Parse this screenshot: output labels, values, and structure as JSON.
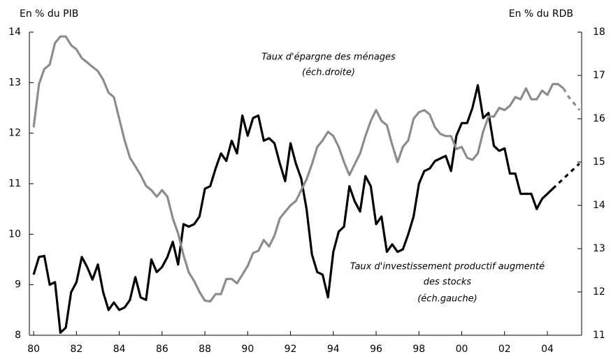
{
  "chart_data": {
    "type": "line",
    "y_label": "En % du PIB",
    "y2_label": "En % du RDB",
    "x": [
      1980,
      1980.25,
      1980.5,
      1980.75,
      1981,
      1981.25,
      1981.5,
      1981.75,
      1982,
      1982.25,
      1982.5,
      1982.75,
      1983,
      1983.25,
      1983.5,
      1983.75,
      1984,
      1984.25,
      1984.5,
      1984.75,
      1985,
      1985.25,
      1985.5,
      1985.75,
      1986,
      1986.25,
      1986.5,
      1986.75,
      1987,
      1987.25,
      1987.5,
      1987.75,
      1988,
      1988.25,
      1988.5,
      1988.75,
      1989,
      1989.25,
      1989.5,
      1989.75,
      1990,
      1990.25,
      1990.5,
      1990.75,
      1991,
      1991.25,
      1991.5,
      1991.75,
      1992,
      1992.25,
      1992.5,
      1992.75,
      1993,
      1993.25,
      1993.5,
      1993.75,
      1994,
      1994.25,
      1994.5,
      1994.75,
      1995,
      1995.25,
      1995.5,
      1995.75,
      1996,
      1996.25,
      1996.5,
      1996.75,
      1997,
      1997.25,
      1997.5,
      1997.75,
      1998,
      1998.25,
      1998.5,
      1998.75,
      1999,
      1999.25,
      1999.5,
      1999.75,
      2000,
      2000.25,
      2000.5,
      2000.75,
      2001,
      2001.25,
      2001.5,
      2001.75,
      2002,
      2002.25,
      2002.5,
      2002.75,
      2003,
      2003.25,
      2003.5,
      2003.75,
      2004,
      2004.25,
      2004.5,
      2004.75,
      2005,
      2005.25,
      2005.5
    ],
    "series": [
      {
        "color": "#000000",
        "axis": "y",
        "dash_start": 2004.25,
        "values": [
          9.2,
          9.55,
          9.57,
          9.0,
          9.05,
          8.05,
          8.15,
          8.85,
          9.05,
          9.55,
          9.35,
          9.1,
          9.4,
          8.85,
          8.5,
          8.65,
          8.5,
          8.55,
          8.7,
          9.15,
          8.75,
          8.7,
          9.5,
          9.25,
          9.35,
          9.55,
          9.85,
          9.4,
          10.2,
          10.15,
          10.2,
          10.35,
          10.9,
          10.95,
          11.3,
          11.6,
          11.45,
          11.85,
          11.6,
          12.35,
          11.95,
          12.3,
          12.35,
          11.85,
          11.9,
          11.8,
          11.4,
          11.05,
          11.8,
          11.4,
          11.1,
          10.5,
          9.6,
          9.25,
          9.2,
          8.75,
          9.65,
          10.05,
          10.15,
          10.95,
          10.65,
          10.45,
          11.15,
          10.95,
          10.2,
          10.35,
          9.65,
          9.8,
          9.65,
          9.7,
          10.0,
          10.35,
          11.0,
          11.25,
          11.3,
          11.45,
          11.5,
          11.55,
          11.25,
          11.95,
          12.2,
          12.2,
          12.5,
          12.95,
          12.3,
          12.4,
          11.75,
          11.65,
          11.7,
          11.2,
          11.2,
          10.8,
          10.8,
          10.8,
          10.5,
          10.7,
          10.8,
          10.9,
          11.0,
          11.1,
          11.2,
          11.3,
          11.4
        ]
      },
      {
        "color": "#8c8c8c",
        "axis": "y2",
        "dash_start": 2004.75,
        "values": [
          15.8,
          16.8,
          17.15,
          17.25,
          17.75,
          17.9,
          17.9,
          17.7,
          17.6,
          17.4,
          17.3,
          17.2,
          17.1,
          16.9,
          16.6,
          16.5,
          16.0,
          15.5,
          15.1,
          14.9,
          14.7,
          14.45,
          14.35,
          14.2,
          14.35,
          14.2,
          13.7,
          13.35,
          12.85,
          12.45,
          12.25,
          12.0,
          11.8,
          11.78,
          11.95,
          11.95,
          12.3,
          12.3,
          12.2,
          12.4,
          12.6,
          12.9,
          12.95,
          13.2,
          13.05,
          13.3,
          13.7,
          13.85,
          14.0,
          14.1,
          14.35,
          14.6,
          14.95,
          15.35,
          15.5,
          15.7,
          15.6,
          15.35,
          15.0,
          14.7,
          14.95,
          15.2,
          15.6,
          15.95,
          16.2,
          15.95,
          15.85,
          15.4,
          15.0,
          15.35,
          15.5,
          16.0,
          16.15,
          16.2,
          16.1,
          15.8,
          15.65,
          15.6,
          15.6,
          15.3,
          15.35,
          15.1,
          15.05,
          15.2,
          15.7,
          16.05,
          16.05,
          16.25,
          16.2,
          16.3,
          16.5,
          16.45,
          16.7,
          16.45,
          16.45,
          16.65,
          16.55,
          16.8,
          16.8,
          16.7,
          16.5,
          16.35,
          16.2
        ]
      }
    ],
    "annotations": [
      "Taux d'épargne des ménages",
      "(éch.droite)",
      "Taux d'investissement productif augmenté",
      "des stocks",
      "(éch.gauche)"
    ],
    "xlim": [
      1979.8,
      2005.6
    ],
    "xticks": [
      {
        "value": 1980,
        "label": "80"
      },
      {
        "value": 1982,
        "label": "82"
      },
      {
        "value": 1984,
        "label": "84"
      },
      {
        "value": 1986,
        "label": "86"
      },
      {
        "value": 1988,
        "label": "88"
      },
      {
        "value": 1990,
        "label": "90"
      },
      {
        "value": 1992,
        "label": "92"
      },
      {
        "value": 1994,
        "label": "94"
      },
      {
        "value": 1996,
        "label": "96"
      },
      {
        "value": 1998,
        "label": "98"
      },
      {
        "value": 2000,
        "label": "00"
      },
      {
        "value": 2002,
        "label": "02"
      },
      {
        "value": 2004,
        "label": "04"
      }
    ],
    "ylim": [
      8,
      14
    ],
    "yticks": [
      8,
      9,
      10,
      11,
      12,
      13,
      14
    ],
    "y2lim": [
      11,
      18
    ],
    "y2ticks": [
      11,
      12,
      13,
      14,
      15,
      16,
      17,
      18
    ]
  }
}
